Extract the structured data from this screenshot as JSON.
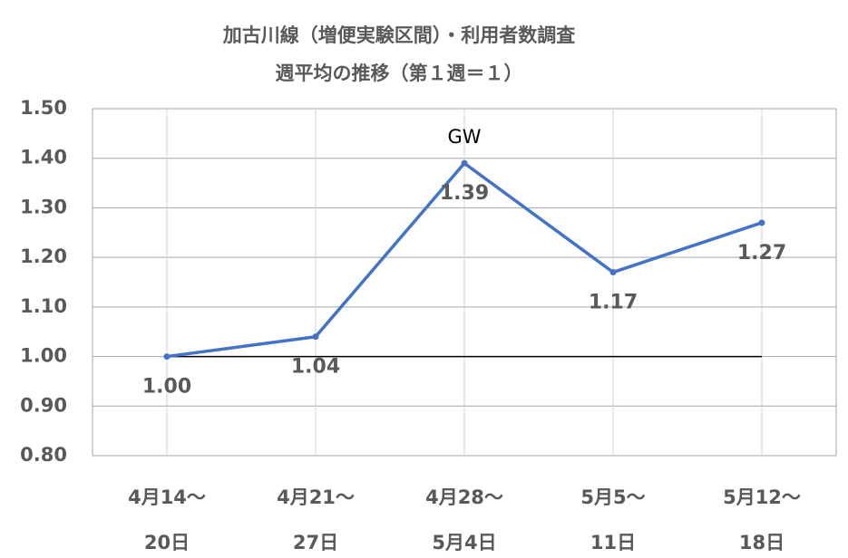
{
  "chart_data": {
    "type": "line",
    "title": [
      "加古川線（増便実験区間）・利用者数調査",
      "週平均の推移（第１週＝１）"
    ],
    "categories": [
      [
        "4月14～",
        "20日"
      ],
      [
        "4月21～",
        "27日"
      ],
      [
        "4月28～",
        "5月4日"
      ],
      [
        "5月5～",
        "11日"
      ],
      [
        "5月12～",
        "18日"
      ]
    ],
    "series": [
      {
        "name": "週平均",
        "color": "#4472c4",
        "values": [
          1.0,
          1.04,
          1.39,
          1.17,
          1.27
        ],
        "value_labels": [
          "1.00",
          "1.04",
          "1.39",
          "1.17",
          "1.27"
        ]
      }
    ],
    "annotations": [
      {
        "text": "GW",
        "index": 2
      }
    ],
    "reference_line": {
      "value": 1,
      "color": "#000000"
    },
    "ylim": [
      0.8,
      1.5
    ],
    "yticks": [
      {
        "value": 0.8,
        "label": "0.80"
      },
      {
        "value": 0.9,
        "label": "0.90"
      },
      {
        "value": 1.0,
        "label": "1.00"
      },
      {
        "value": 1.1,
        "label": "1.10"
      },
      {
        "value": 1.2,
        "label": "1.20"
      },
      {
        "value": 1.3,
        "label": "1.30"
      },
      {
        "value": 1.4,
        "label": "1.40"
      },
      {
        "value": 1.5,
        "label": "1.50"
      }
    ],
    "grid": true
  }
}
